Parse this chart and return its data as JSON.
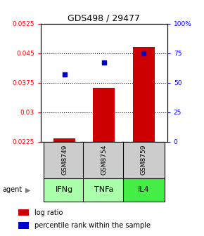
{
  "title": "GDS498 / 29477",
  "samples": [
    "GSM8749",
    "GSM8754",
    "GSM8759"
  ],
  "agents": [
    "IFNg",
    "TNFa",
    "IL4"
  ],
  "log_ratio_values": [
    0.02335,
    0.0362,
    0.0465
  ],
  "log_ratio_baseline": 0.0225,
  "percentile_values": [
    57,
    67,
    75
  ],
  "ylim_left": [
    0.0225,
    0.0525
  ],
  "ylim_right": [
    0,
    100
  ],
  "yticks_left": [
    0.0225,
    0.03,
    0.0375,
    0.045,
    0.0525
  ],
  "ytick_labels_left": [
    "0.0225",
    "0.03",
    "0.0375",
    "0.045",
    "0.0525"
  ],
  "yticks_right": [
    0,
    25,
    50,
    75,
    100
  ],
  "ytick_labels_right": [
    "0",
    "25",
    "50",
    "75",
    "100%"
  ],
  "bar_color": "#cc0000",
  "marker_color": "#0000cc",
  "agent_colors": [
    "#aaffaa",
    "#aaffaa",
    "#44ee44"
  ],
  "sample_box_color": "#cccccc",
  "bar_width": 0.55,
  "legend_items": [
    "log ratio",
    "percentile rank within the sample"
  ]
}
